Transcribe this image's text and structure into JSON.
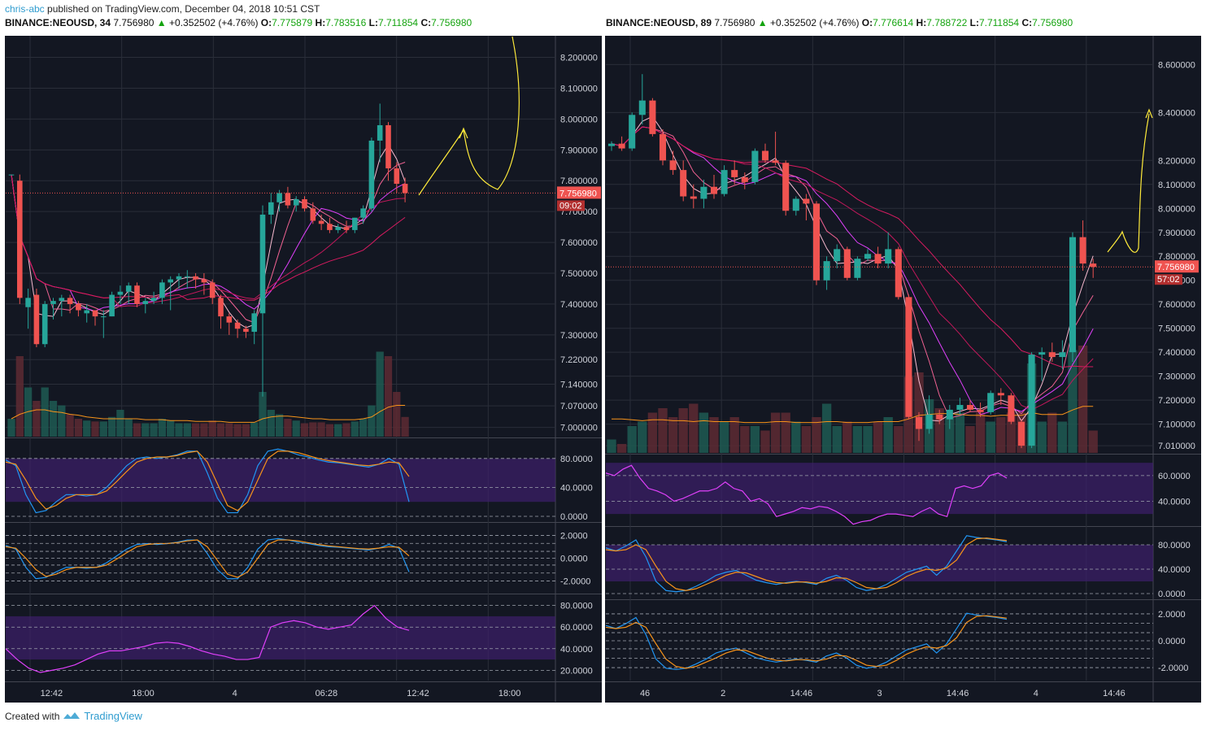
{
  "publisher": {
    "user": "chris-abc",
    "text": "published on TradingView.com, December 04, 2018 10:51 CST"
  },
  "footer": {
    "created_with": "Created with",
    "brand": "TradingView"
  },
  "colors": {
    "bg": "#131722",
    "up": "#26a69a",
    "down": "#ef5350",
    "grid": "#2a2e39",
    "text": "#d1d4dc",
    "orange": "#f7931a",
    "blue": "#2196f3",
    "magenta": "#e040fb",
    "purple_band": "#3d1f6b",
    "yellow": "#ffeb3b",
    "pink": "#f48fb1"
  },
  "left": {
    "header": {
      "symbol": "BINANCE:NEOUSD, 34",
      "last": "7.756980",
      "change": "+0.352502 (+4.76%)",
      "o": "7.775879",
      "h": "7.783516",
      "l": "7.711854",
      "c": "7.756980"
    },
    "price_label": "7.756980",
    "countdown": "09:02",
    "x_labels": [
      "12:42",
      "18:00",
      "4",
      "06:28",
      "12:42",
      "18:00"
    ],
    "price_ticks": [
      "8.200000",
      "8.100000",
      "8.000000",
      "7.900000",
      "7.800000",
      "7.700000",
      "7.600000",
      "7.500000",
      "7.400000",
      "7.300000",
      "7.220000",
      "7.140000",
      "7.070000",
      "7.000000"
    ],
    "stoch_ticks": [
      "80.0000",
      "40.0000",
      "0.0000"
    ],
    "macd_ticks": [
      "2.0000",
      "0.0000",
      "-2.0000"
    ],
    "rsi_ticks": [
      "80.0000",
      "60.0000",
      "40.0000",
      "20.0000"
    ]
  },
  "right": {
    "header": {
      "symbol": "BINANCE:NEOUSD, 89",
      "last": "7.756980",
      "change": "+0.352502 (+4.76%)",
      "o": "7.776614",
      "h": "7.788722",
      "l": "7.711854",
      "c": "7.756980"
    },
    "price_label": "7.756980",
    "countdown": "57:02",
    "x_labels": [
      "46",
      "2",
      "14:46",
      "3",
      "14:46",
      "4",
      "14:46"
    ],
    "price_ticks": [
      "8.600000",
      "8.400000",
      "8.200000",
      "8.100000",
      "8.000000",
      "7.900000",
      "7.800000",
      "7.700000",
      "7.600000",
      "7.500000",
      "7.400000",
      "7.300000",
      "7.200000",
      "7.100000",
      "7.010000"
    ],
    "rsi_ticks": [
      "60.0000",
      "40.0000"
    ],
    "stoch_ticks": [
      "80.0000",
      "40.0000",
      "0.0000"
    ],
    "macd_ticks": [
      "2.0000",
      "0.0000",
      "-2.0000"
    ]
  },
  "chart_data": [
    {
      "type": "candlestick",
      "title": "BINANCE:NEOUSD, 34",
      "timeframe_minutes": 34,
      "ylim": [
        6.97,
        8.27
      ],
      "x_ticks": [
        "12:42",
        "18:00",
        "4",
        "06:28",
        "12:42",
        "18:00"
      ],
      "ohlc": [
        [
          7.82,
          7.82,
          7.82,
          7.82
        ],
        [
          7.8,
          7.82,
          7.4,
          7.42
        ],
        [
          7.39,
          7.45,
          7.32,
          7.42
        ],
        [
          7.43,
          7.45,
          7.26,
          7.27
        ],
        [
          7.27,
          7.41,
          7.26,
          7.4
        ],
        [
          7.4,
          7.42,
          7.35,
          7.41
        ],
        [
          7.41,
          7.43,
          7.36,
          7.42
        ],
        [
          7.42,
          7.43,
          7.37,
          7.4
        ],
        [
          7.4,
          7.41,
          7.36,
          7.38
        ],
        [
          7.37,
          7.4,
          7.34,
          7.38
        ],
        [
          7.38,
          7.38,
          7.33,
          7.36
        ],
        [
          7.36,
          7.38,
          7.29,
          7.36
        ],
        [
          7.36,
          7.44,
          7.36,
          7.43
        ],
        [
          7.43,
          7.46,
          7.4,
          7.44
        ],
        [
          7.44,
          7.47,
          7.4,
          7.46
        ],
        [
          7.46,
          7.47,
          7.39,
          7.4
        ],
        [
          7.4,
          7.42,
          7.37,
          7.41
        ],
        [
          7.41,
          7.44,
          7.4,
          7.42
        ],
        [
          7.42,
          7.48,
          7.4,
          7.47
        ],
        [
          7.47,
          7.49,
          7.38,
          7.48
        ],
        [
          7.48,
          7.5,
          7.45,
          7.49
        ],
        [
          7.49,
          7.51,
          7.45,
          7.49
        ],
        [
          7.49,
          7.5,
          7.45,
          7.48
        ],
        [
          7.48,
          7.5,
          7.43,
          7.47
        ],
        [
          7.47,
          7.48,
          7.4,
          7.42
        ],
        [
          7.42,
          7.43,
          7.32,
          7.36
        ],
        [
          7.36,
          7.37,
          7.3,
          7.34
        ],
        [
          7.34,
          7.35,
          7.29,
          7.32
        ],
        [
          7.32,
          7.33,
          7.29,
          7.31
        ],
        [
          7.31,
          7.38,
          7.27,
          7.37
        ],
        [
          7.37,
          7.72,
          7.1,
          7.69
        ],
        [
          7.69,
          7.76,
          7.66,
          7.73
        ],
        [
          7.73,
          7.77,
          7.7,
          7.76
        ],
        [
          7.76,
          7.78,
          7.71,
          7.72
        ],
        [
          7.72,
          7.75,
          7.7,
          7.74
        ],
        [
          7.74,
          7.75,
          7.7,
          7.71
        ],
        [
          7.71,
          7.73,
          7.66,
          7.67
        ],
        [
          7.67,
          7.69,
          7.64,
          7.66
        ],
        [
          7.66,
          7.68,
          7.63,
          7.64
        ],
        [
          7.64,
          7.66,
          7.63,
          7.65
        ],
        [
          7.65,
          7.67,
          7.63,
          7.64
        ],
        [
          7.64,
          7.68,
          7.63,
          7.68
        ],
        [
          7.68,
          7.72,
          7.66,
          7.71
        ],
        [
          7.71,
          7.94,
          7.7,
          7.93
        ],
        [
          7.93,
          8.05,
          7.86,
          7.98
        ],
        [
          7.98,
          7.99,
          7.8,
          7.84
        ],
        [
          7.84,
          7.86,
          7.76,
          7.79
        ],
        [
          7.79,
          7.81,
          7.73,
          7.76
        ]
      ],
      "volume": [
        0.2,
        0.9,
        0.55,
        0.4,
        0.55,
        0.4,
        0.35,
        0.25,
        0.2,
        0.18,
        0.17,
        0.17,
        0.22,
        0.3,
        0.2,
        0.15,
        0.15,
        0.15,
        0.2,
        0.18,
        0.15,
        0.15,
        0.15,
        0.15,
        0.18,
        0.15,
        0.15,
        0.14,
        0.14,
        0.16,
        0.5,
        0.3,
        0.25,
        0.2,
        0.18,
        0.15,
        0.16,
        0.16,
        0.14,
        0.14,
        0.15,
        0.17,
        0.2,
        0.35,
        0.95,
        0.9,
        0.5,
        0.22
      ],
      "volume_ma": [
        0.2,
        0.25,
        0.28,
        0.3,
        0.3,
        0.28,
        0.27,
        0.25,
        0.24,
        0.22,
        0.21,
        0.2,
        0.2,
        0.2,
        0.2,
        0.2,
        0.19,
        0.19,
        0.19,
        0.18,
        0.18,
        0.18,
        0.17,
        0.17,
        0.17,
        0.17,
        0.16,
        0.16,
        0.16,
        0.16,
        0.2,
        0.22,
        0.23,
        0.23,
        0.22,
        0.21,
        0.2,
        0.2,
        0.19,
        0.19,
        0.19,
        0.19,
        0.2,
        0.22,
        0.28,
        0.33,
        0.35,
        0.35
      ],
      "stoch_k": [
        78,
        70,
        30,
        5,
        8,
        20,
        30,
        30,
        28,
        30,
        40,
        55,
        70,
        80,
        82,
        80,
        82,
        85,
        90,
        90,
        60,
        25,
        5,
        5,
        30,
        70,
        90,
        93,
        90,
        85,
        82,
        78,
        75,
        74,
        72,
        70,
        68,
        72,
        80,
        72,
        20
      ],
      "stoch_d": [
        75,
        72,
        50,
        25,
        10,
        15,
        25,
        30,
        30,
        30,
        35,
        48,
        62,
        75,
        80,
        82,
        82,
        84,
        88,
        90,
        75,
        45,
        15,
        8,
        20,
        50,
        80,
        90,
        90,
        88,
        84,
        80,
        77,
        75,
        73,
        71,
        70,
        72,
        75,
        74,
        55
      ],
      "macd_ticks": [
        "2.0000",
        "0.0000",
        "-2.0000"
      ],
      "rsi": [
        40,
        30,
        22,
        18,
        20,
        22,
        25,
        30,
        35,
        38,
        38,
        40,
        42,
        45,
        46,
        45,
        42,
        38,
        35,
        33,
        30,
        30,
        32,
        60,
        64,
        66,
        64,
        60,
        58,
        60,
        62,
        72,
        80,
        68,
        60,
        57
      ]
    },
    {
      "type": "candlestick",
      "title": "BINANCE:NEOUSD, 89",
      "timeframe_minutes": 89,
      "ylim": [
        6.98,
        8.72
      ],
      "x_ticks": [
        "46",
        "2",
        "14:46",
        "3",
        "14:46",
        "4",
        "14:46"
      ],
      "ohlc": [
        [
          8.26,
          8.28,
          8.24,
          8.27
        ],
        [
          8.27,
          8.3,
          8.24,
          8.25
        ],
        [
          8.25,
          8.4,
          8.24,
          8.39
        ],
        [
          8.39,
          8.56,
          8.35,
          8.45
        ],
        [
          8.45,
          8.46,
          8.3,
          8.31
        ],
        [
          8.31,
          8.33,
          8.18,
          8.2
        ],
        [
          8.2,
          8.24,
          8.14,
          8.16
        ],
        [
          8.16,
          8.2,
          8.03,
          8.05
        ],
        [
          8.05,
          8.1,
          8.0,
          8.04
        ],
        [
          8.04,
          8.12,
          8.0,
          8.09
        ],
        [
          8.09,
          8.14,
          8.04,
          8.06
        ],
        [
          8.06,
          8.18,
          8.05,
          8.16
        ],
        [
          8.16,
          8.2,
          8.1,
          8.13
        ],
        [
          8.13,
          8.15,
          8.08,
          8.11
        ],
        [
          8.11,
          8.25,
          8.1,
          8.24
        ],
        [
          8.24,
          8.27,
          8.19,
          8.2
        ],
        [
          8.2,
          8.32,
          8.18,
          8.19
        ],
        [
          8.19,
          8.2,
          7.97,
          7.99
        ],
        [
          7.99,
          8.05,
          7.97,
          8.04
        ],
        [
          8.04,
          8.06,
          7.95,
          8.02
        ],
        [
          8.02,
          8.03,
          7.68,
          7.7
        ],
        [
          7.7,
          7.8,
          7.66,
          7.78
        ],
        [
          7.78,
          7.85,
          7.75,
          7.83
        ],
        [
          7.83,
          7.84,
          7.7,
          7.71
        ],
        [
          7.71,
          7.8,
          7.7,
          7.79
        ],
        [
          7.79,
          7.83,
          7.78,
          7.81
        ],
        [
          7.81,
          7.84,
          7.75,
          7.77
        ],
        [
          7.77,
          7.9,
          7.75,
          7.83
        ],
        [
          7.83,
          7.84,
          7.62,
          7.63
        ],
        [
          7.63,
          7.64,
          7.12,
          7.13
        ],
        [
          7.13,
          7.15,
          7.03,
          7.08
        ],
        [
          7.08,
          7.22,
          7.06,
          7.14
        ],
        [
          7.14,
          7.16,
          7.1,
          7.12
        ],
        [
          7.12,
          7.18,
          7.08,
          7.16
        ],
        [
          7.16,
          7.21,
          7.14,
          7.18
        ],
        [
          7.18,
          7.2,
          7.15,
          7.16
        ],
        [
          7.16,
          7.19,
          7.13,
          7.15
        ],
        [
          7.15,
          7.24,
          7.14,
          7.23
        ],
        [
          7.23,
          7.25,
          7.18,
          7.22
        ],
        [
          7.22,
          7.23,
          7.1,
          7.11
        ],
        [
          7.11,
          7.12,
          7.0,
          7.01
        ],
        [
          7.01,
          7.4,
          7.0,
          7.39
        ],
        [
          7.39,
          7.42,
          7.28,
          7.4
        ],
        [
          7.4,
          7.44,
          7.36,
          7.38
        ],
        [
          7.38,
          7.45,
          7.33,
          7.4
        ],
        [
          7.4,
          7.9,
          7.36,
          7.88
        ],
        [
          7.88,
          7.95,
          7.74,
          7.77
        ],
        [
          7.77,
          7.79,
          7.71,
          7.756
        ]
      ],
      "volume": [
        0.15,
        0.1,
        0.3,
        0.35,
        0.45,
        0.5,
        0.4,
        0.5,
        0.55,
        0.45,
        0.4,
        0.35,
        0.4,
        0.3,
        0.3,
        0.25,
        0.45,
        0.45,
        0.35,
        0.3,
        0.4,
        0.55,
        0.3,
        0.35,
        0.3,
        0.3,
        0.35,
        0.4,
        0.3,
        0.85,
        0.9,
        0.6,
        0.5,
        0.4,
        0.45,
        0.3,
        0.45,
        0.35,
        0.4,
        0.45,
        0.45,
        1.0,
        0.35,
        0.45,
        0.35,
        1.15,
        1.2,
        0.25
      ],
      "volume_ma": [
        0.38,
        0.38,
        0.37,
        0.36,
        0.37,
        0.37,
        0.36,
        0.36,
        0.35,
        0.36,
        0.35,
        0.35,
        0.35,
        0.34,
        0.34,
        0.34,
        0.35,
        0.35,
        0.34,
        0.34,
        0.34,
        0.35,
        0.35,
        0.34,
        0.34,
        0.34,
        0.35,
        0.35,
        0.35,
        0.38,
        0.42,
        0.43,
        0.44,
        0.44,
        0.43,
        0.42,
        0.42,
        0.41,
        0.42,
        0.42,
        0.42,
        0.45,
        0.43,
        0.43,
        0.43,
        0.48,
        0.52,
        0.52
      ],
      "rsi": [
        62,
        60,
        65,
        68,
        58,
        50,
        48,
        45,
        40,
        42,
        45,
        48,
        48,
        50,
        55,
        50,
        48,
        40,
        42,
        38,
        28,
        30,
        32,
        35,
        34,
        36,
        35,
        32,
        28,
        22,
        24,
        25,
        28,
        30,
        30,
        29,
        28,
        32,
        35,
        30,
        28,
        50,
        52,
        50,
        52,
        60,
        62,
        58
      ],
      "stoch_k": [
        75,
        70,
        78,
        88,
        60,
        20,
        5,
        3,
        5,
        12,
        20,
        30,
        35,
        38,
        30,
        22,
        18,
        15,
        18,
        20,
        18,
        15,
        25,
        30,
        22,
        10,
        5,
        8,
        15,
        25,
        35,
        40,
        45,
        30,
        45,
        70,
        95,
        92,
        90,
        88,
        85
      ],
      "stoch_d": [
        72,
        70,
        72,
        80,
        72,
        45,
        20,
        8,
        5,
        8,
        15,
        22,
        30,
        35,
        34,
        28,
        22,
        18,
        17,
        19,
        19,
        17,
        20,
        26,
        25,
        18,
        10,
        8,
        10,
        18,
        28,
        35,
        40,
        38,
        42,
        55,
        80,
        90,
        91,
        89,
        87
      ]
    }
  ]
}
